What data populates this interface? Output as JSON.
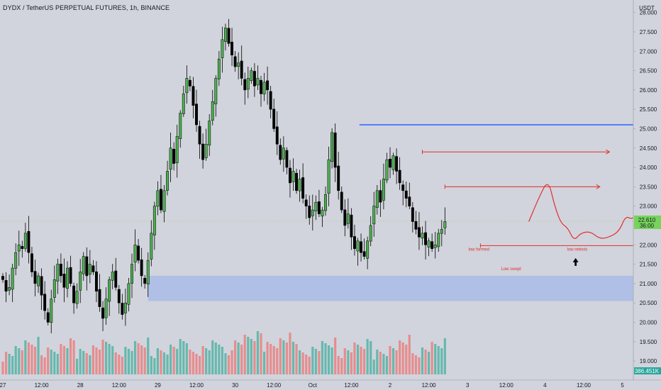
{
  "chart_data": {
    "type": "candlestick",
    "title": "DYDX / TetherUS PERPETUAL FUTURES, 1h, BINANCE",
    "currency_label": "USDT",
    "ylim": [
      18.8,
      28.25
    ],
    "y_ticks": [
      "28.000",
      "27.500",
      "27.000",
      "26.500",
      "26.000",
      "25.500",
      "25.000",
      "24.500",
      "24.000",
      "23.500",
      "23.000",
      "22.500",
      "22.000",
      "21.500",
      "21.000",
      "20.500",
      "20.000",
      "19.500",
      "19.000"
    ],
    "x_ticks": [
      "27",
      "12:00",
      "28",
      "12:00",
      "29",
      "12:00",
      "30",
      "12:00",
      "Oct",
      "12:00",
      "2",
      "12:00",
      "3",
      "12:00",
      "4",
      "12:00",
      "5",
      "12:00",
      "6",
      "12:00"
    ],
    "x_tick_hours": [
      0,
      12,
      24,
      36,
      48,
      60,
      72,
      84,
      96,
      108,
      120,
      132,
      144,
      156,
      168,
      180,
      192,
      204,
      216,
      228
    ],
    "last_price": {
      "value": 22.61,
      "label": "22.610",
      "countdown": "36:00"
    },
    "volume_label": "386.451K",
    "colors": {
      "up": "#4caf50",
      "down": "#000000",
      "vol_up": "#5bb5a9",
      "vol_down": "#e88585",
      "bg": "#d1d4dc",
      "zone": "#a9bbe8",
      "blue_line": "#2962ff",
      "annotation": "#e0302f"
    },
    "demand_zone": {
      "from_hour": 45,
      "to_hour": 238,
      "low": 20.55,
      "high": 21.2
    },
    "resistance_line": {
      "from_hour": 110.5,
      "to_hour": 212,
      "value": 25.1
    },
    "arrows": [
      {
        "from_hour": 130,
        "to_hour": 188,
        "value": 24.4
      },
      {
        "from_hour": 137,
        "to_hour": 185,
        "value": 23.5
      },
      {
        "from_hour": 148,
        "to_hour": 199,
        "value": 21.98
      }
    ],
    "projected_path": [
      [
        163,
        22.6
      ],
      [
        166,
        23.2
      ],
      [
        169,
        23.7
      ],
      [
        171,
        23.0
      ],
      [
        173,
        22.55
      ],
      [
        175,
        22.45
      ],
      [
        177,
        22.1
      ],
      [
        179,
        22.3
      ],
      [
        182,
        22.35
      ],
      [
        185,
        22.15
      ],
      [
        188,
        22.2
      ],
      [
        191,
        22.35
      ],
      [
        193,
        22.75
      ],
      [
        195,
        22.65
      ],
      [
        197,
        22.85
      ],
      [
        200,
        22.95
      ],
      [
        203,
        23.3
      ],
      [
        206,
        24.0
      ],
      [
        209,
        25.0
      ],
      [
        212,
        25.75
      ]
    ],
    "annotations": [
      {
        "text": "low formed",
        "hour": 147.5,
        "value": 21.85
      },
      {
        "text": "Low swept",
        "hour": 157.5,
        "value": 21.35
      },
      {
        "text": "low retests",
        "hour": 178,
        "value": 21.85
      }
    ],
    "up_arrow": {
      "hour": 177.5,
      "value": 21.55
    },
    "close_series": [
      21.1,
      20.8,
      20.9,
      21.4,
      21.8,
      22.0,
      21.9,
      22.3,
      21.8,
      21.3,
      21.0,
      21.2,
      20.7,
      20.3,
      20.0,
      20.6,
      21.1,
      21.5,
      21.2,
      20.9,
      21.4,
      21.0,
      20.5,
      20.8,
      21.3,
      21.7,
      21.2,
      21.5,
      21.3,
      20.8,
      20.4,
      20.1,
      20.6,
      21.1,
      21.3,
      20.9,
      20.5,
      20.2,
      20.5,
      21.0,
      21.5,
      22.0,
      21.6,
      21.2,
      21.0,
      21.6,
      22.3,
      23.0,
      23.4,
      22.9,
      23.4,
      23.9,
      24.5,
      24.1,
      24.8,
      25.4,
      25.9,
      26.3,
      26.1,
      25.6,
      25.1,
      24.6,
      24.2,
      24.6,
      25.2,
      25.7,
      26.3,
      26.8,
      27.3,
      27.6,
      27.2,
      26.9,
      26.6,
      26.7,
      26.3,
      26.0,
      26.3,
      26.5,
      26.1,
      26.3,
      25.9,
      26.2,
      26.0,
      25.5,
      25.0,
      24.6,
      24.2,
      24.5,
      24.0,
      23.6,
      23.9,
      23.4,
      23.7,
      23.2,
      23.0,
      22.7,
      22.9,
      23.1,
      22.8,
      22.9,
      23.3,
      24.2,
      24.9,
      24.0,
      23.4,
      22.9,
      22.5,
      22.8,
      22.2,
      21.9,
      22.1,
      21.8,
      21.7,
      22.1,
      22.5,
      23.0,
      23.4,
      23.1,
      23.7,
      24.2,
      24.0,
      24.3,
      23.9,
      23.6,
      23.4,
      23.2,
      23.0,
      22.6,
      22.4,
      22.2,
      22.3,
      22.0,
      22.1,
      21.9,
      22.0,
      22.3,
      22.4,
      22.6
    ]
  }
}
